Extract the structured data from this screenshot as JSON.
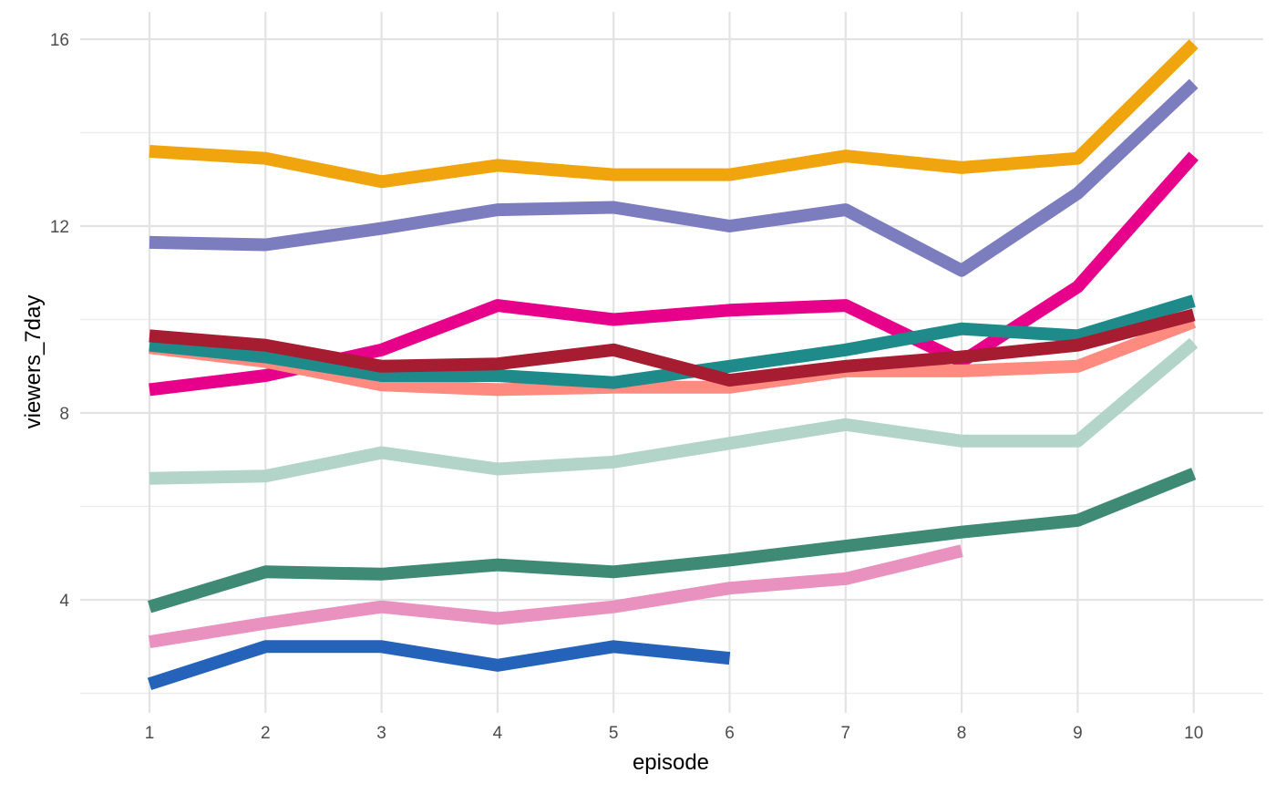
{
  "chart_data": {
    "type": "line",
    "title": "",
    "xlabel": "episode",
    "ylabel": "viewers_7day",
    "x_ticks": [
      "1",
      "2",
      "3",
      "4",
      "5",
      "6",
      "7",
      "8",
      "9",
      "10"
    ],
    "y_ticks": [
      "4",
      "8",
      "12",
      "16"
    ],
    "xlim": [
      0.5,
      10.5
    ],
    "ylim": [
      1.9,
      16.3
    ],
    "grid": true,
    "legend": "none",
    "series": [
      {
        "color": "#F0A50F",
        "x": [
          1,
          2,
          3,
          4,
          5,
          6,
          7,
          8,
          9,
          10
        ],
        "values": [
          13.6,
          13.45,
          12.95,
          13.3,
          13.1,
          13.1,
          13.5,
          13.25,
          13.45,
          15.9
        ]
      },
      {
        "color": "#7B7DBF",
        "x": [
          1,
          2,
          3,
          4,
          5,
          6,
          7,
          8,
          9,
          10
        ],
        "values": [
          11.65,
          11.6,
          11.95,
          12.35,
          12.4,
          12.0,
          12.35,
          11.05,
          12.7,
          15.05
        ]
      },
      {
        "color": "#E7008A",
        "x": [
          1,
          2,
          3,
          4,
          5,
          6,
          7,
          8,
          9,
          10
        ],
        "values": [
          8.5,
          8.8,
          9.35,
          10.3,
          10.0,
          10.2,
          10.3,
          9.1,
          10.7,
          13.5
        ]
      },
      {
        "color": "#FF8A80",
        "x": [
          1,
          2,
          3,
          4,
          5,
          6,
          7,
          8,
          9,
          10
        ],
        "values": [
          9.4,
          9.1,
          8.6,
          8.5,
          8.55,
          8.55,
          8.9,
          8.9,
          9.0,
          9.95
        ]
      },
      {
        "color": "#1E8A8A",
        "x": [
          1,
          2,
          3,
          4,
          5,
          6,
          7,
          8,
          9,
          10
        ],
        "values": [
          9.45,
          9.2,
          8.8,
          8.8,
          8.65,
          9.0,
          9.35,
          9.8,
          9.65,
          10.4
        ]
      },
      {
        "color": "#A61C30",
        "x": [
          1,
          2,
          3,
          4,
          5,
          6,
          7,
          8,
          9,
          10
        ],
        "values": [
          9.65,
          9.45,
          9.0,
          9.05,
          9.35,
          8.7,
          9.0,
          9.2,
          9.45,
          10.1
        ]
      },
      {
        "color": "#B3D4C9",
        "x": [
          1,
          2,
          3,
          4,
          5,
          6,
          7,
          8,
          9,
          10
        ],
        "values": [
          6.6,
          6.65,
          7.15,
          6.8,
          6.95,
          7.35,
          7.75,
          7.4,
          7.4,
          9.5
        ]
      },
      {
        "color": "#3E8A74",
        "x": [
          1,
          2,
          3,
          4,
          5,
          6,
          7,
          8,
          9,
          10
        ],
        "values": [
          3.85,
          4.6,
          4.55,
          4.75,
          4.6,
          4.85,
          5.15,
          5.45,
          5.7,
          6.7
        ]
      },
      {
        "color": "#E991BF",
        "x": [
          1,
          2,
          3,
          4,
          5,
          6,
          7,
          8
        ],
        "values": [
          3.1,
          3.5,
          3.85,
          3.6,
          3.85,
          4.25,
          4.45,
          5.05
        ]
      },
      {
        "color": "#2563BB",
        "x": [
          1,
          2,
          3,
          4,
          5,
          6
        ],
        "values": [
          2.2,
          3.0,
          3.0,
          2.6,
          3.0,
          2.75
        ]
      }
    ]
  }
}
